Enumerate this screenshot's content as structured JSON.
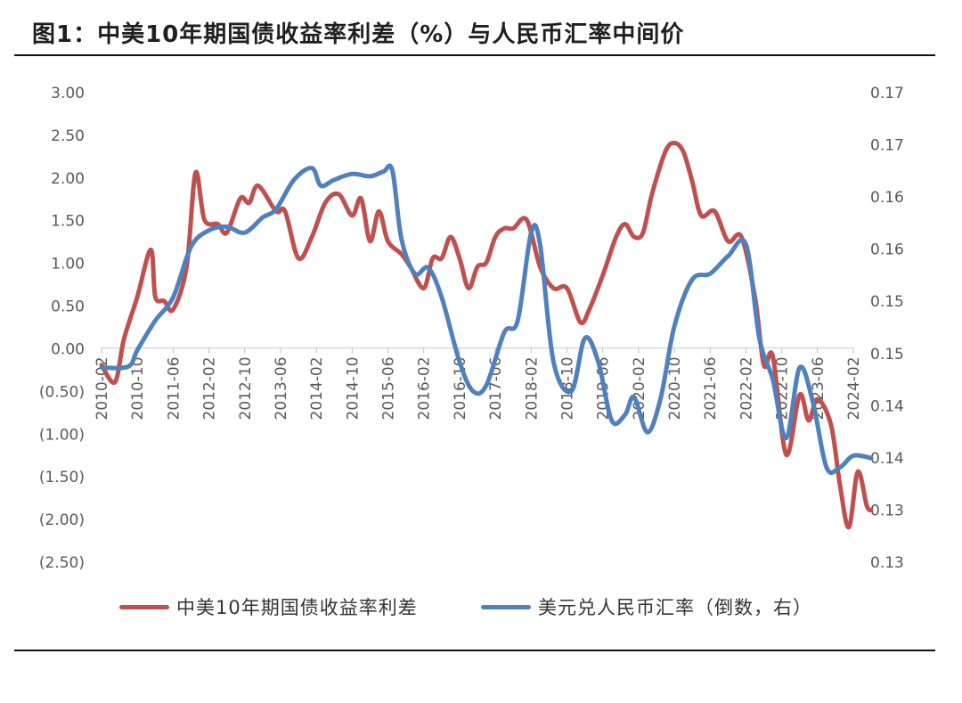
{
  "header": {
    "title": "图1：中美10年期国债收益率利差（%）与人民币汇率中间价"
  },
  "chart_data": {
    "type": "line",
    "title": "图1：中美10年期国债收益率利差（%）与人民币汇率中间价",
    "legend_position": "bottom",
    "grid": false,
    "x_tick_labels": [
      "2010-02",
      "2010-10",
      "2011-06",
      "2012-02",
      "2012-10",
      "2013-06",
      "2014-02",
      "2014-10",
      "2015-06",
      "2016-02",
      "2016-10",
      "2017-06",
      "2018-02",
      "2018-10",
      "2019-06",
      "2020-02",
      "2020-10",
      "2021-06",
      "2022-02",
      "2022-10",
      "2023-06",
      "2024-02"
    ],
    "x_range": [
      "2010-02",
      "2024-02"
    ],
    "left_axis": {
      "tick_labels": [
        "3.00",
        "2.50",
        "2.00",
        "1.50",
        "1.00",
        "0.50",
        "0.00",
        "(0.50)",
        "(1.00)",
        "(1.50)",
        "(2.00)",
        "(2.50)"
      ],
      "ylim": [
        -2.5,
        3.0
      ]
    },
    "right_axis": {
      "tick_labels": [
        "0.17",
        "0.17",
        "0.16",
        "0.16",
        "0.15",
        "0.15",
        "0.14",
        "0.14",
        "0.13",
        "0.13"
      ],
      "ylim": [
        0.13,
        0.17
      ]
    },
    "series": [
      {
        "name": "中美10年期国债收益率利差",
        "color": "#c0504d",
        "axis": "left",
        "values": [
          [
            "2010-02",
            -0.2
          ],
          [
            "2010-05",
            -0.4
          ],
          [
            "2010-07",
            0.1
          ],
          [
            "2010-10",
            0.6
          ],
          [
            "2011-01",
            1.15
          ],
          [
            "2011-02",
            0.6
          ],
          [
            "2011-04",
            0.55
          ],
          [
            "2011-06",
            0.45
          ],
          [
            "2011-09",
            0.95
          ],
          [
            "2011-11",
            2.05
          ],
          [
            "2012-01",
            1.5
          ],
          [
            "2012-04",
            1.45
          ],
          [
            "2012-06",
            1.35
          ],
          [
            "2012-09",
            1.75
          ],
          [
            "2012-11",
            1.7
          ],
          [
            "2013-01",
            1.9
          ],
          [
            "2013-05",
            1.6
          ],
          [
            "2013-07",
            1.6
          ],
          [
            "2013-10",
            1.05
          ],
          [
            "2014-01",
            1.3
          ],
          [
            "2014-04",
            1.7
          ],
          [
            "2014-07",
            1.8
          ],
          [
            "2014-10",
            1.55
          ],
          [
            "2014-12",
            1.75
          ],
          [
            "2015-02",
            1.25
          ],
          [
            "2015-04",
            1.6
          ],
          [
            "2015-06",
            1.25
          ],
          [
            "2015-09",
            1.1
          ],
          [
            "2015-11",
            0.95
          ],
          [
            "2016-02",
            0.7
          ],
          [
            "2016-04",
            1.05
          ],
          [
            "2016-06",
            1.05
          ],
          [
            "2016-08",
            1.3
          ],
          [
            "2016-10",
            1.05
          ],
          [
            "2016-12",
            0.7
          ],
          [
            "2017-02",
            0.95
          ],
          [
            "2017-04",
            1.0
          ],
          [
            "2017-06",
            1.3
          ],
          [
            "2017-08",
            1.4
          ],
          [
            "2017-10",
            1.4
          ],
          [
            "2018-01",
            1.5
          ],
          [
            "2018-04",
            0.95
          ],
          [
            "2018-07",
            0.7
          ],
          [
            "2018-10",
            0.7
          ],
          [
            "2019-01",
            0.3
          ],
          [
            "2019-03",
            0.45
          ],
          [
            "2019-06",
            0.85
          ],
          [
            "2019-09",
            1.3
          ],
          [
            "2019-11",
            1.45
          ],
          [
            "2020-01",
            1.3
          ],
          [
            "2020-03",
            1.35
          ],
          [
            "2020-05",
            1.8
          ],
          [
            "2020-08",
            2.3
          ],
          [
            "2020-10",
            2.4
          ],
          [
            "2020-12",
            2.3
          ],
          [
            "2021-02",
            1.95
          ],
          [
            "2021-04",
            1.55
          ],
          [
            "2021-07",
            1.6
          ],
          [
            "2021-10",
            1.25
          ],
          [
            "2022-01",
            1.3
          ],
          [
            "2022-04",
            0.6
          ],
          [
            "2022-06",
            -0.2
          ],
          [
            "2022-08",
            -0.1
          ],
          [
            "2022-11",
            -1.25
          ],
          [
            "2023-02",
            -0.55
          ],
          [
            "2023-04",
            -0.85
          ],
          [
            "2023-06",
            -0.6
          ],
          [
            "2023-09",
            -0.9
          ],
          [
            "2023-11",
            -1.6
          ],
          [
            "2024-01",
            -2.1
          ],
          [
            "2024-03",
            -1.45
          ],
          [
            "2024-05",
            -1.85
          ],
          [
            "2024-06",
            -1.9
          ]
        ]
      },
      {
        "name": "美元兑人民币汇率（倒数，右）",
        "color": "#4f81bd",
        "axis": "right",
        "values": [
          [
            "2010-02",
            0.1465
          ],
          [
            "2010-08",
            0.1466
          ],
          [
            "2010-10",
            0.148
          ],
          [
            "2011-02",
            0.1505
          ],
          [
            "2011-06",
            0.1525
          ],
          [
            "2011-10",
            0.1568
          ],
          [
            "2012-02",
            0.1582
          ],
          [
            "2012-06",
            0.1585
          ],
          [
            "2012-10",
            0.158
          ],
          [
            "2013-02",
            0.1593
          ],
          [
            "2013-05",
            0.16
          ],
          [
            "2013-09",
            0.1625
          ],
          [
            "2014-01",
            0.1635
          ],
          [
            "2014-03",
            0.162
          ],
          [
            "2014-06",
            0.1625
          ],
          [
            "2014-10",
            0.163
          ],
          [
            "2015-02",
            0.1628
          ],
          [
            "2015-05",
            0.1632
          ],
          [
            "2015-07",
            0.1633
          ],
          [
            "2015-09",
            0.1575
          ],
          [
            "2015-12",
            0.1545
          ],
          [
            "2016-03",
            0.155
          ],
          [
            "2016-06",
            0.1525
          ],
          [
            "2016-10",
            0.147
          ],
          [
            "2017-01",
            0.1445
          ],
          [
            "2017-04",
            0.145
          ],
          [
            "2017-08",
            0.1495
          ],
          [
            "2017-11",
            0.1505
          ],
          [
            "2018-02",
            0.158
          ],
          [
            "2018-04",
            0.157
          ],
          [
            "2018-07",
            0.147
          ],
          [
            "2018-11",
            0.1445
          ],
          [
            "2019-02",
            0.149
          ],
          [
            "2019-05",
            0.147
          ],
          [
            "2019-08",
            0.142
          ],
          [
            "2019-11",
            0.1425
          ],
          [
            "2020-01",
            0.144
          ],
          [
            "2020-04",
            0.141
          ],
          [
            "2020-07",
            0.144
          ],
          [
            "2020-10",
            0.15
          ],
          [
            "2021-02",
            0.154
          ],
          [
            "2021-06",
            0.1545
          ],
          [
            "2021-10",
            0.156
          ],
          [
            "2022-02",
            0.157
          ],
          [
            "2022-05",
            0.149
          ],
          [
            "2022-08",
            0.1455
          ],
          [
            "2022-11",
            0.1405
          ],
          [
            "2023-02",
            0.1465
          ],
          [
            "2023-05",
            0.1435
          ],
          [
            "2023-08",
            0.138
          ],
          [
            "2023-11",
            0.138
          ],
          [
            "2024-02",
            0.139
          ],
          [
            "2024-06",
            0.1388
          ]
        ]
      }
    ]
  }
}
